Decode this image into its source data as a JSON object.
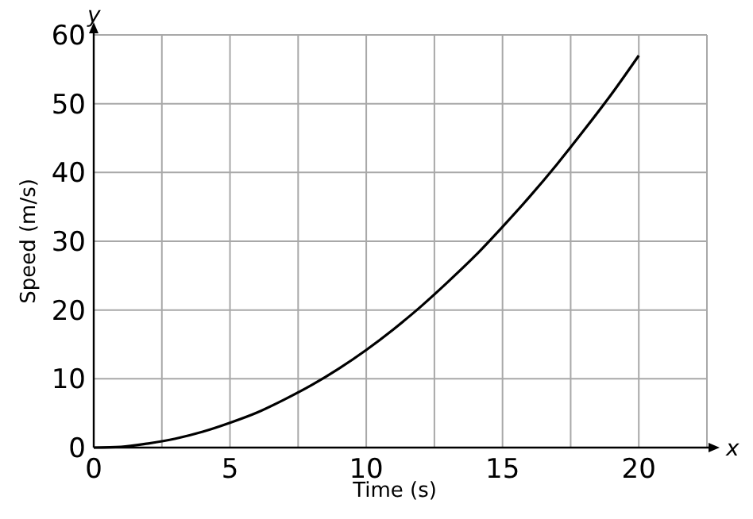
{
  "chart_data": {
    "type": "line",
    "xlabel": "Time (s)",
    "ylabel": "Speed (m/s)",
    "annotations": [
      "x",
      "y"
    ],
    "x": [
      0,
      1,
      2,
      3,
      4,
      5,
      6,
      7,
      8,
      9,
      10,
      11,
      12,
      13,
      14,
      15,
      16,
      17,
      18,
      19,
      20
    ],
    "series": [
      {
        "color": "#000000",
        "values": [
          0,
          0.1,
          0.6,
          1.3,
          2.3,
          3.6,
          5.1,
          7.0,
          9.1,
          11.5,
          14.2,
          17.2,
          20.5,
          24.1,
          27.9,
          32.1,
          36.5,
          41.2,
          46.2,
          51.4,
          57
        ]
      }
    ],
    "xlim": [
      0,
      22.5
    ],
    "ylim": [
      0,
      60
    ],
    "xticks": [
      0,
      {
        "value": 2.5,
        "label": null
      },
      5,
      {
        "value": 7.5,
        "label": null
      },
      10,
      {
        "value": 12.5,
        "label": null
      },
      15,
      {
        "value": 17.5,
        "label": null
      },
      20,
      {
        "value": 22.5,
        "label": null
      }
    ],
    "yticks": [
      0,
      10,
      20,
      30,
      40,
      50,
      60
    ],
    "grid": true,
    "marker": "none",
    "line_style": "solid"
  }
}
